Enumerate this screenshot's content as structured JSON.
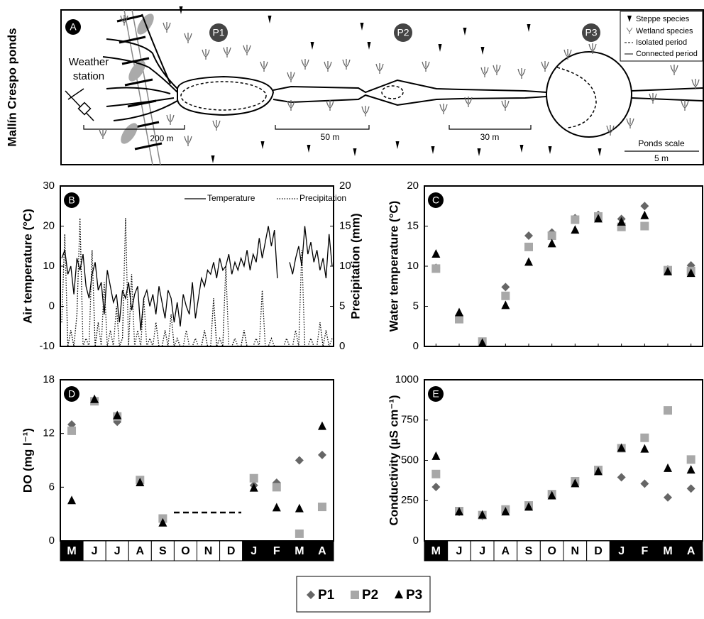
{
  "diagram": {
    "panel_label": "A",
    "side_label": "Mallín Crespo ponds",
    "ponds": [
      "P1",
      "P2",
      "P3"
    ],
    "weather_station": [
      "Weather",
      "station"
    ],
    "scales": [
      "200 m",
      "50 m",
      "30 m"
    ],
    "ponds_scale": "Ponds scale",
    "ponds_scale_length": "5 m",
    "legend": [
      "Steppe species",
      "Wetland species",
      "Isolated period",
      "Connected period"
    ]
  },
  "legend": [
    {
      "name": "P1",
      "color": "#666666",
      "marker": "diamond"
    },
    {
      "name": "P2",
      "color": "#a8a8a8",
      "marker": "square"
    },
    {
      "name": "P3",
      "color": "#000000",
      "marker": "triangle"
    }
  ],
  "chart_data": [
    {
      "type": "line",
      "panel_label": "B",
      "ylabel": "Air temperature (°C)",
      "y2label": "Precipitation (mm)",
      "ylim": [
        -10,
        30
      ],
      "yticks": [
        -10,
        0,
        10,
        20,
        30
      ],
      "y2lim": [
        0,
        20
      ],
      "y2ticks": [
        0,
        5,
        10,
        15,
        20
      ],
      "series": [
        {
          "name": "Temperature",
          "color": "#000000",
          "style": "solid",
          "values": [
            12,
            14,
            8,
            10,
            3,
            12,
            9,
            13,
            5,
            2,
            8,
            11,
            4,
            6,
            -2,
            9,
            5,
            1,
            3,
            -4,
            4,
            2,
            6,
            -1,
            3,
            5,
            -6,
            2,
            4,
            0,
            3,
            -2,
            5,
            1,
            -3,
            4,
            2,
            -4,
            1,
            -5,
            3,
            0,
            -2,
            6,
            -3,
            2,
            7,
            5,
            9,
            8,
            11,
            7,
            12,
            9,
            10,
            13,
            8,
            11,
            9,
            12,
            10,
            14,
            9,
            13,
            11,
            17,
            12,
            16,
            20,
            15,
            19,
            7,
            null,
            null,
            null,
            11,
            8,
            12,
            15,
            10,
            20,
            13,
            16,
            11,
            14,
            9,
            12,
            7,
            18,
            10
          ]
        },
        {
          "name": "Precipitation",
          "color": "#000000",
          "style": "dotted",
          "axis": "y2",
          "values": [
            3,
            14,
            0,
            2,
            0,
            4,
            16,
            0,
            1,
            0,
            12,
            0,
            3,
            0,
            8,
            0,
            2,
            0,
            5,
            0,
            1,
            16,
            0,
            9,
            0,
            2,
            0,
            6,
            0,
            1,
            0,
            3,
            0,
            0,
            2,
            0,
            4,
            0,
            1,
            0,
            0,
            2,
            0,
            0,
            1,
            0,
            0,
            2,
            0,
            0,
            6,
            0,
            1,
            0,
            10,
            0,
            0,
            1,
            0,
            0,
            2,
            0,
            0,
            0,
            1,
            0,
            7,
            0,
            0,
            1,
            0,
            0,
            0,
            0,
            1,
            0,
            0,
            2,
            0,
            12,
            0,
            0,
            1,
            0,
            0,
            3,
            0,
            2,
            0,
            1
          ]
        }
      ]
    },
    {
      "type": "scatter",
      "panel_label": "C",
      "ylabel": "Water temperature (°C)",
      "ylim": [
        0,
        20
      ],
      "yticks": [
        0,
        5,
        10,
        15,
        20
      ],
      "categories": [
        "M",
        "J",
        "J",
        "A",
        "S",
        "O",
        "N",
        "D",
        "J",
        "F",
        "M",
        "A"
      ],
      "series": [
        {
          "values": [
            9.8,
            3.6,
            0.5,
            7.4,
            13.8,
            14.2,
            16.0,
            16.4,
            15.9,
            17.5,
            9.6,
            10.1
          ]
        },
        {
          "values": [
            9.7,
            3.4,
            0.6,
            6.3,
            12.4,
            13.8,
            15.8,
            16.2,
            14.9,
            15.0,
            9.5,
            9.4
          ]
        },
        {
          "values": [
            11.5,
            4.2,
            0.4,
            5.1,
            10.5,
            12.8,
            14.5,
            15.9,
            15.5,
            16.3,
            9.3,
            9.1
          ]
        }
      ]
    },
    {
      "type": "scatter",
      "panel_label": "D",
      "ylabel": "DO (mg l⁻¹)",
      "ylim": [
        0,
        18
      ],
      "yticks": [
        0,
        6,
        12,
        18
      ],
      "categories": [
        "M",
        "J",
        "J",
        "A",
        "S",
        "O",
        "N",
        "D",
        "J",
        "F",
        "M",
        "A"
      ],
      "dark_categories": [
        0,
        8,
        9,
        10,
        11
      ],
      "series": [
        {
          "values": [
            13.0,
            15.7,
            13.3,
            6.7,
            2.3,
            null,
            null,
            null,
            6.2,
            6.5,
            9.0,
            9.6
          ]
        },
        {
          "values": [
            12.3,
            15.6,
            13.9,
            6.8,
            2.5,
            null,
            null,
            null,
            7.0,
            6.0,
            0.8,
            3.8
          ]
        },
        {
          "values": [
            4.5,
            15.8,
            14.0,
            6.5,
            2.0,
            null,
            null,
            null,
            5.9,
            3.7,
            3.6,
            12.8
          ]
        }
      ]
    },
    {
      "type": "scatter",
      "panel_label": "E",
      "ylabel": "Conductivity (µS cm⁻¹)",
      "ylim": [
        0,
        1000
      ],
      "yticks": [
        0,
        250,
        500,
        750,
        1000
      ],
      "categories": [
        "M",
        "J",
        "J",
        "A",
        "S",
        "O",
        "N",
        "D",
        "J",
        "F",
        "M",
        "A"
      ],
      "dark_categories": [
        0,
        8,
        9,
        10,
        11
      ],
      "series": [
        {
          "values": [
            335,
            180,
            155,
            185,
            215,
            285,
            360,
            435,
            395,
            355,
            270,
            325
          ]
        },
        {
          "values": [
            415,
            185,
            160,
            195,
            220,
            290,
            370,
            440,
            575,
            640,
            810,
            505
          ]
        },
        {
          "values": [
            525,
            180,
            160,
            180,
            210,
            280,
            355,
            430,
            575,
            570,
            450,
            440
          ]
        }
      ]
    }
  ]
}
